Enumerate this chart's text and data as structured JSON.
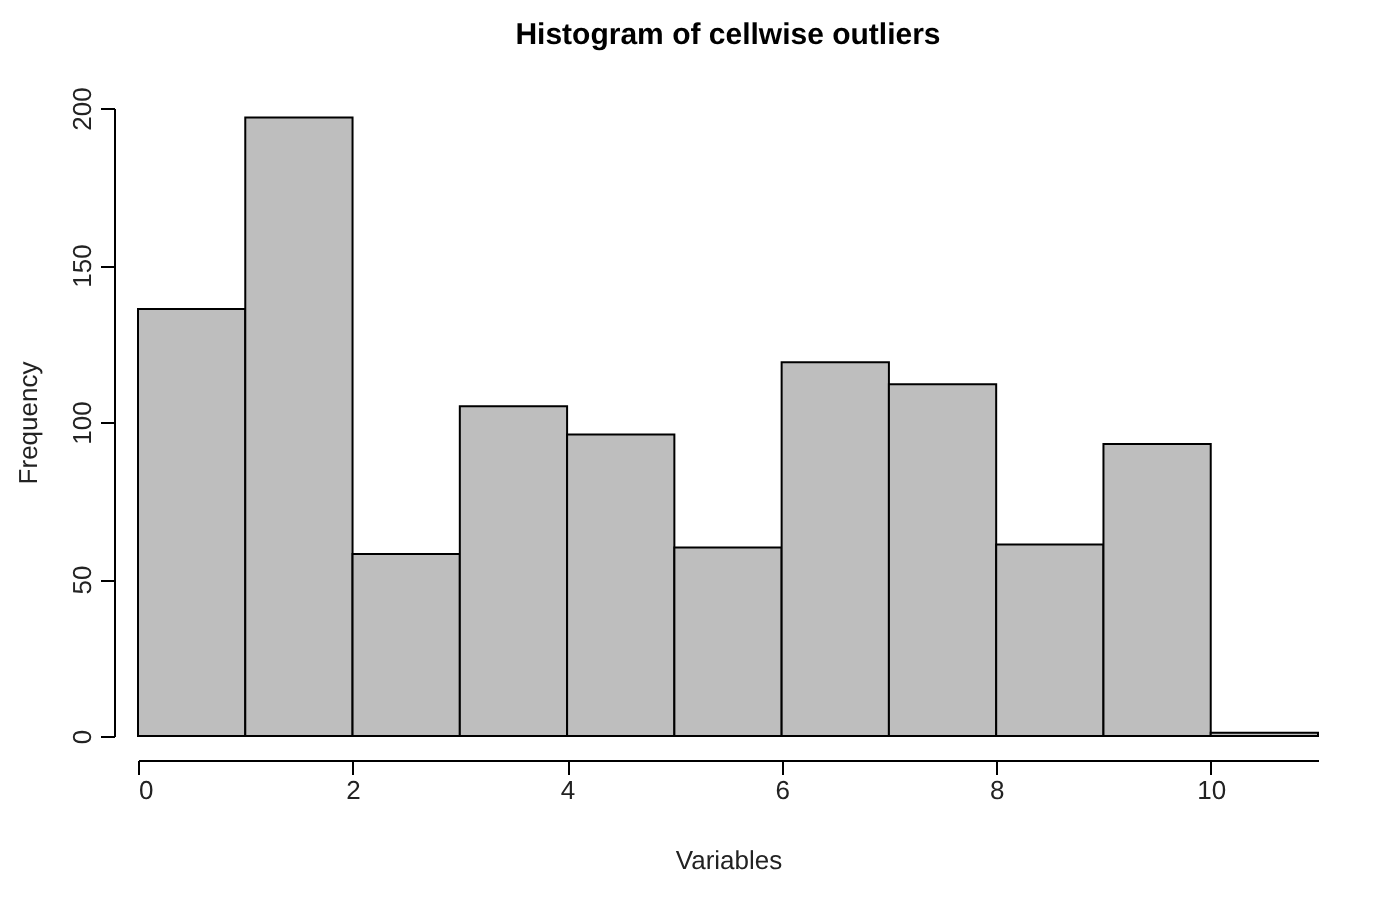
{
  "chart_data": {
    "type": "histogram",
    "title": "Histogram of cellwise outliers",
    "xlabel": "Variables",
    "ylabel": "Frequency",
    "bins": [
      0,
      1,
      2,
      3,
      4,
      5,
      6,
      7,
      8,
      9,
      10,
      11
    ],
    "values": [
      136,
      197,
      58,
      105,
      96,
      60,
      119,
      112,
      61,
      93,
      1
    ],
    "color": "#bebebe",
    "xlim": [
      0,
      11
    ],
    "xticks": [
      0,
      2,
      4,
      6,
      8,
      10
    ],
    "ylim": [
      0,
      200
    ],
    "yticks": [
      0,
      50,
      100,
      150,
      200
    ],
    "grid": false
  }
}
